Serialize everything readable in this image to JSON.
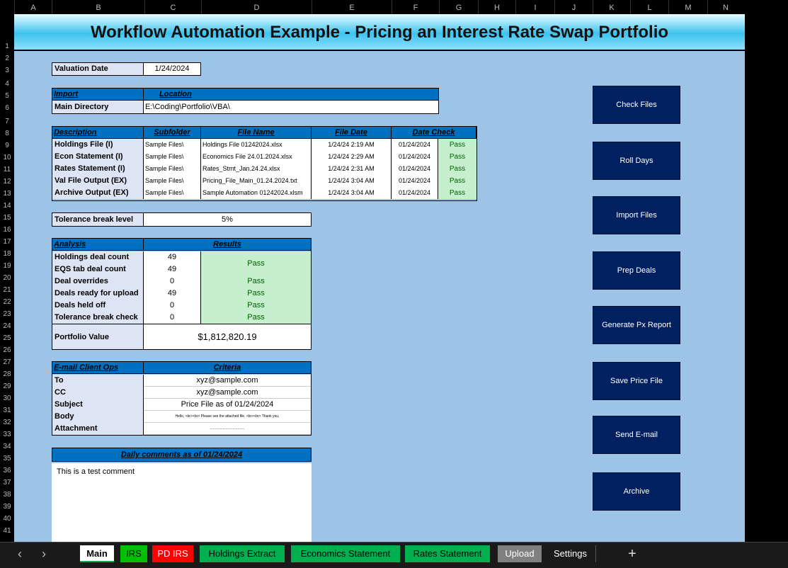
{
  "columns": [
    "A",
    "B",
    "C",
    "D",
    "E",
    "F",
    "G",
    "H",
    "I",
    "J",
    "K",
    "L",
    "M",
    "N"
  ],
  "rows": [
    "1",
    "2",
    "3",
    "4",
    "5",
    "6",
    "7",
    "8",
    "9",
    "10",
    "11",
    "12",
    "13",
    "14",
    "15",
    "16",
    "17",
    "18",
    "19",
    "20",
    "21",
    "22",
    "23",
    "24",
    "25",
    "26",
    "27",
    "28",
    "29",
    "30",
    "31",
    "32",
    "33",
    "34",
    "35",
    "36",
    "37",
    "38",
    "39",
    "40",
    "41"
  ],
  "title": "Workflow Automation Example - Pricing an Interest Rate Swap Portfolio",
  "valuation": {
    "label": "Valuation Date",
    "value": "1/24/2024"
  },
  "import": {
    "header_left": "Import",
    "header_right": "Location",
    "label": "Main Directory",
    "value": "E:\\Coding\\Portfolio\\VBA\\"
  },
  "files": {
    "headers": [
      "Description",
      "Subfolder",
      "File Name",
      "File Date",
      "Date Check"
    ],
    "rows": [
      {
        "desc": "Holdings File (I)",
        "sub": "Sample Files\\",
        "name": "Holdings File 01242024.xlsx",
        "date": "1/24/24 2:19 AM",
        "check": "01/24/2024",
        "status": "Pass"
      },
      {
        "desc": "Econ Statement (I)",
        "sub": "Sample Files\\",
        "name": "Economics File 24.01.2024.xlsx",
        "date": "1/24/24 2:29 AM",
        "check": "01/24/2024",
        "status": "Pass"
      },
      {
        "desc": "Rates Statement (I)",
        "sub": "Sample Files\\",
        "name": "Rates_Stmt_Jan.24.24.xlsx",
        "date": "1/24/24 2:31 AM",
        "check": "01/24/2024",
        "status": "Pass"
      },
      {
        "desc": "Val File Output (EX)",
        "sub": "Sample Files\\",
        "name": "Pricing_File_Main_01.24.2024.txt",
        "date": "1/24/24 3:04 AM",
        "check": "01/24/2024",
        "status": "Pass"
      },
      {
        "desc": "Archive Output (EX)",
        "sub": "Sample Files\\",
        "name": "Sample Automation 01242024.xlsm",
        "date": "1/24/24 3:04 AM",
        "check": "01/24/2024",
        "status": "Pass"
      }
    ]
  },
  "tolerance": {
    "label": "Tolerance break level",
    "value": "5%"
  },
  "analysis": {
    "header_left": "Analysis",
    "header_right": "Results",
    "rows": [
      {
        "label": "Holdings deal count",
        "value": "49"
      },
      {
        "label": "EQS tab deal count",
        "value": "49"
      },
      {
        "label": "Deal overrides",
        "value": "0",
        "status": "Pass"
      },
      {
        "label": "Deals ready for upload",
        "value": "49",
        "status": "Pass"
      },
      {
        "label": "Deals held off",
        "value": "0",
        "status": "Pass"
      },
      {
        "label": "Tolerance break check",
        "value": "0",
        "status": "Pass"
      }
    ],
    "merged_status": "Pass",
    "portfolio_label": "Portfolio Value",
    "portfolio_value": "$1,812,820.19"
  },
  "email": {
    "header_left": "E-mail Client Ops",
    "header_right": "Criteria",
    "rows": [
      {
        "label": "To",
        "value": "xyz@sample.com"
      },
      {
        "label": "CC",
        "value": "xyz@sample.com"
      },
      {
        "label": "Subject",
        "value": "Price File as of 01/24/2024"
      },
      {
        "label": "Body",
        "value": "Hello, <br><br> Please see the attached file. <br><br> Thank you,"
      },
      {
        "label": "Attachment",
        "value": "..................................."
      }
    ]
  },
  "comments": {
    "header": "Daily comments as of 01/24/2024",
    "text": "This is a test comment"
  },
  "buttons": [
    "Check Files",
    "Roll Days",
    "Import Files",
    "Prep Deals",
    "Generate Px Report",
    "Save Price File",
    "Send E-mail",
    "Archive"
  ],
  "sheet_tabs": [
    {
      "label": "Main",
      "bg": "#ffffff",
      "fg": "#000000"
    },
    {
      "label": "IRS",
      "bg": "#00c000",
      "fg": "#000000"
    },
    {
      "label": "PD IRS",
      "bg": "#ff0000",
      "fg": "#ffffff"
    },
    {
      "label": "Holdings Extract",
      "bg": "#00b050",
      "fg": "#000000"
    },
    {
      "label": "Economics Statement",
      "bg": "#00b050",
      "fg": "#000000"
    },
    {
      "label": "Rates Statement",
      "bg": "#00b050",
      "fg": "#000000"
    },
    {
      "label": "Upload",
      "bg": "#808080",
      "fg": "#ffffff"
    },
    {
      "label": "Settings",
      "bg": "#1a1a1a",
      "fg": "#ffffff"
    }
  ],
  "nav": {
    "prev": "‹",
    "next": "›",
    "add": "+"
  }
}
